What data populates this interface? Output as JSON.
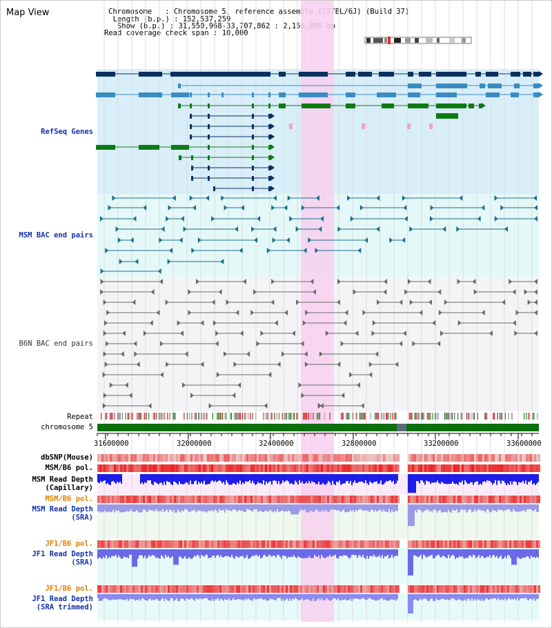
{
  "title": "Map View",
  "header": {
    "chromosome_key": "Chromosome   ",
    "chromosome_val": ": Chromosome 5, reference assembly (C57BL/6J) (Build 37)",
    "length_key": "  Length (b.p.)",
    "length_val": ": 152,537,259",
    "show_key": "   Show (b.p.)",
    "show_val": ": 31,550,968-33,707,862 : 2,156,895 bp",
    "span_key": "Read coverage check span",
    "span_val": ": 10,000"
  },
  "tracks": {
    "refseq": "RefSeq Genes",
    "msm_bac": "MSM BAC end pairs",
    "b6n_bac": "B6N BAC end pairs",
    "repeat": "Repeat",
    "chromosome": "chromosome 5",
    "dbsnp": "dbSNP(Mouse)",
    "msm_b6_pol_1": "MSM/B6 pol.",
    "msm_depth_cap_1": "MSM Read Depth",
    "msm_depth_cap_2": "(Capillary)",
    "msm_b6_pol_2": "MSM/B6 pol.",
    "msm_depth_sra_1": "MSM Read Depth",
    "msm_depth_sra_2": "(SRA)",
    "jf1_b6_pol_1": "JF1/B6 pol.",
    "jf1_depth_sra_1": "JF1 Read Depth",
    "jf1_depth_sra_2": "(SRA)",
    "jf1_b6_pol_2": "JF1/B6 pol.",
    "jf1_depth_trim_1": "JF1 Read Depth",
    "jf1_depth_trim_2": "(SRA trimmed)"
  },
  "axis": {
    "ticks": [
      "31600000",
      "32000000",
      "32400000",
      "32800000",
      "33200000",
      "33600000"
    ]
  },
  "colors": {
    "refseq_bg": "#d8eef8",
    "msm_bac_bg": "#e4f8f8",
    "b6n_bg": "#f4f4f6",
    "highlight": "#f8d0f0",
    "gene_dark": "#0a3060",
    "gene_mid": "#3a8cc0",
    "gene_green": "#0e7a12",
    "chromosome_bar": "#0c6e0c",
    "depth_blue": "#2020e8"
  }
}
